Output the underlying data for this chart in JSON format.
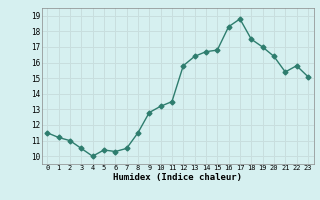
{
  "x": [
    0,
    1,
    2,
    3,
    4,
    5,
    6,
    7,
    8,
    9,
    10,
    11,
    12,
    13,
    14,
    15,
    16,
    17,
    18,
    19,
    20,
    21,
    22,
    23
  ],
  "y": [
    11.5,
    11.2,
    11.0,
    10.5,
    10.0,
    10.4,
    10.3,
    10.5,
    11.5,
    12.8,
    13.2,
    13.5,
    15.8,
    16.4,
    16.7,
    16.8,
    18.3,
    18.8,
    17.5,
    17.0,
    16.4,
    15.4,
    15.8,
    15.1
  ],
  "xlabel": "Humidex (Indice chaleur)",
  "ylim": [
    9.5,
    19.5
  ],
  "xlim": [
    -0.5,
    23.5
  ],
  "yticks": [
    10,
    11,
    12,
    13,
    14,
    15,
    16,
    17,
    18,
    19
  ],
  "xticks": [
    0,
    1,
    2,
    3,
    4,
    5,
    6,
    7,
    8,
    9,
    10,
    11,
    12,
    13,
    14,
    15,
    16,
    17,
    18,
    19,
    20,
    21,
    22,
    23
  ],
  "line_color": "#2e7d6e",
  "bg_color": "#d6f0f0",
  "grid_color": "#c8dede",
  "marker": "D",
  "marker_size": 2.5,
  "line_width": 1.0
}
